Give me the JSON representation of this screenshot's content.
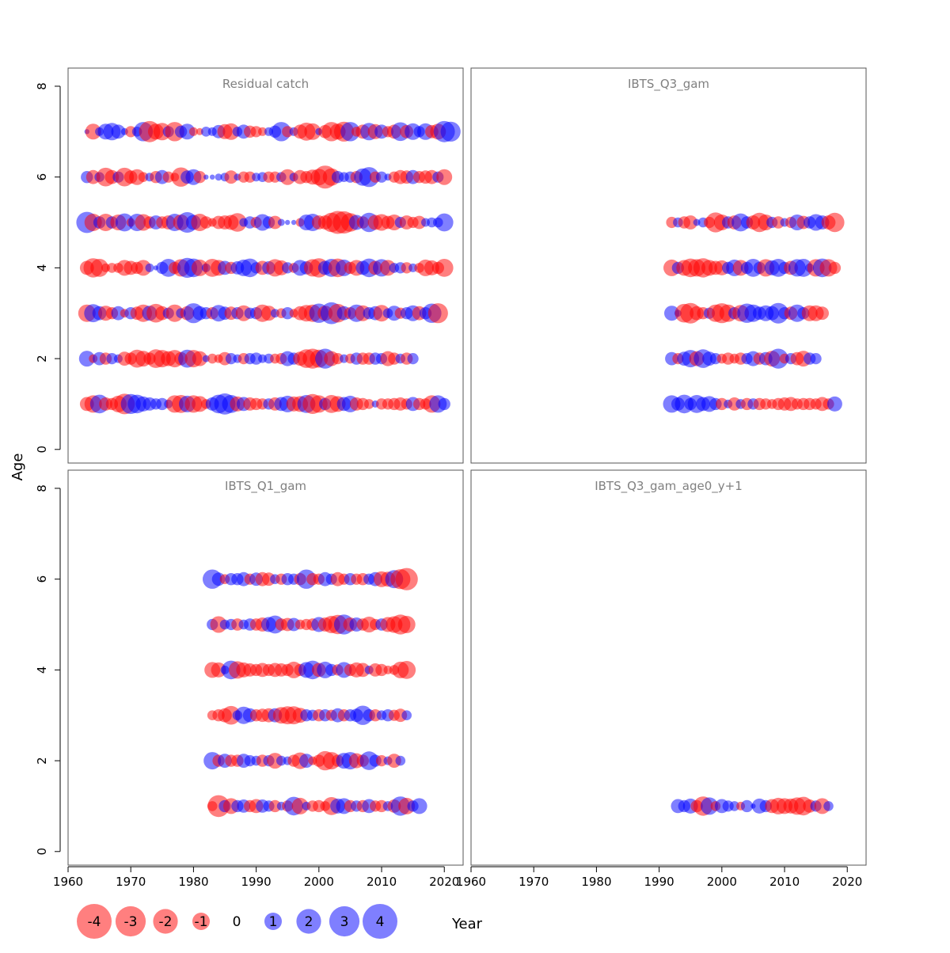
{
  "chart_data": {
    "type": "scatter",
    "subtype": "bubble residual plot",
    "xlabel": "Year",
    "ylabel": "Age",
    "xlim": [
      1960,
      2023
    ],
    "ylim": [
      -0.3,
      8.4
    ],
    "x_ticks": [
      1960,
      1970,
      1980,
      1990,
      2000,
      2010,
      2020
    ],
    "y_ticks": [
      0,
      2,
      4,
      6,
      8
    ],
    "colors": {
      "negative": "#ff0000",
      "positive": "#0000ff"
    },
    "legend": {
      "values": [
        -4,
        -3,
        -2,
        -1,
        0,
        1,
        2,
        3,
        4
      ],
      "labels": [
        "-4",
        "-3",
        "-2",
        "-1",
        "0",
        "1",
        "2",
        "3",
        "4"
      ]
    },
    "panels": [
      {
        "title": "Residual catch",
        "first_year": 1963,
        "ages": [
          7,
          6,
          5,
          4,
          3,
          2,
          1
        ],
        "residuals": {
          "7": [
            0.1,
            -1,
            0.3,
            1,
            1.2,
            0.8,
            0.2,
            -0.5,
            0.4,
            1.5,
            -1.8,
            -1,
            -1.2,
            0.5,
            -1.5,
            0.6,
            1,
            -0.3,
            -0.2,
            0.4,
            0.3,
            0.7,
            -0.9,
            -1.1,
            0.4,
            0.8,
            -0.6,
            -0.5,
            -0.3,
            0.3,
            0.6,
            1.5,
            -0.5,
            0.3,
            -0.8,
            -1.3,
            -1.1,
            0.2,
            -0.7,
            -1.5,
            -1,
            -1.6,
            1.5,
            -0.4,
            -0.8,
            1.2,
            -0.9,
            0.8,
            -0.5,
            -0.8,
            1.4,
            -0.7,
            1.1,
            0.5,
            1.1,
            -0.7,
            -1,
            1.8,
            1.6
          ],
          "6": [
            0.6,
            -0.8,
            0.4,
            -1.4,
            -0.8,
            0.5,
            -1.4,
            -0.7,
            -1,
            -0.4,
            0.3,
            -0.6,
            0.8,
            -0.5,
            -0.3,
            -1.5,
            0.7,
            1,
            -0.6,
            0.1,
            0.1,
            0.2,
            0.3,
            -0.7,
            0.2,
            -0.5,
            -0.5,
            0.3,
            0.4,
            -0.5,
            -0.5,
            0.4,
            -1,
            0.3,
            -0.8,
            -0.6,
            -0.9,
            -1.1,
            -2.1,
            -1.2,
            0.6,
            0.4,
            0.5,
            -0.6,
            1.2,
            1.6,
            -0.5,
            0.5,
            0.2,
            -0.5,
            -0.8,
            -0.7,
            0.8,
            -0.6,
            -0.7,
            -0.8,
            0.5,
            -1
          ],
          "5": [
            1.8,
            -1.2,
            0.6,
            -1.2,
            0.6,
            -1,
            1.3,
            -0.3,
            1.2,
            -1.1,
            -0.6,
            0.8,
            -0.6,
            -0.8,
            1.2,
            -1,
            1.7,
            0.9,
            -1.2,
            -0.6,
            -0.3,
            -0.7,
            -0.8,
            -0.9,
            -1.4,
            0.3,
            0.6,
            -0.5,
            1.1,
            0.6,
            -0.7,
            0.2,
            0.1,
            0.1,
            -0.3,
            1,
            1.2,
            -0.8,
            -0.8,
            -1.5,
            -2.1,
            -2,
            -1.4,
            0.9,
            -0.6,
            1.5,
            -0.9,
            -1.1,
            -0.7,
            -1,
            0.5,
            -0.8,
            -0.5,
            -0.7,
            0.3,
            0.4,
            0.4,
            1.3
          ],
          "4": [
            -0.8,
            -1.5,
            -1.3,
            -0.3,
            -0.4,
            -0.4,
            -1,
            -0.8,
            -0.6,
            -1,
            0.3,
            0.1,
            0.6,
            1.3,
            -0.6,
            -1.2,
            1.6,
            1.4,
            -1.1,
            0.3,
            -1.3,
            -1,
            0.8,
            -0.6,
            0.7,
            1.1,
            1.4,
            0.5,
            -0.8,
            0.7,
            -1.2,
            -0.9,
            0.5,
            -0.4,
            1,
            0.7,
            -1.2,
            -1.5,
            0.8,
            1.3,
            -1.4,
            1.1,
            -0.6,
            -1,
            0.8,
            1.4,
            -0.8,
            1.2,
            -1,
            0.4,
            0.5,
            -0.5,
            0.3,
            -0.4,
            -1.1,
            -0.9,
            -0.6,
            -1.3
          ],
          "3": [
            -1.2,
            1.3,
            0.8,
            -0.9,
            -0.6,
            0.8,
            -0.3,
            0.6,
            -0.7,
            -1.2,
            0.9,
            -1.4,
            -0.8,
            0.5,
            -1.2,
            0.4,
            -0.8,
            1.6,
            0.8,
            0.6,
            -0.6,
            1.1,
            0.7,
            -0.7,
            0.6,
            -1,
            0.5,
            0.6,
            -1.2,
            -0.9,
            0.3,
            -0.4,
            0.6,
            -0.3,
            -0.8,
            -1.1,
            -1.2,
            1.5,
            -0.9,
            1.9,
            -1.4,
            0.8,
            -0.6,
            1.2,
            -1,
            0.6,
            0.8,
            -1.1,
            0.4,
            0.9,
            -0.5,
            0.6,
            1,
            -0.8,
            0.6,
            1.5,
            -1.6
          ],
          "2": [
            1,
            -0.3,
            0.7,
            -0.6,
            0.5,
            0.3,
            -0.8,
            -0.6,
            -1.3,
            -1,
            -0.6,
            -1.4,
            -1.2,
            -0.9,
            -1.2,
            -0.7,
            1.3,
            -1.2,
            -0.9,
            0.2,
            -0.4,
            -0.3,
            -0.7,
            0.5,
            0.3,
            -0.5,
            0.5,
            0.6,
            0.3,
            0.4,
            -0.4,
            -0.5,
            0.9,
            0.6,
            -0.8,
            -1.4,
            -1.6,
            -1.3,
            1.6,
            -0.9,
            -0.5,
            0.3,
            -0.4,
            0.6,
            -0.6,
            -0.6,
            0.6,
            0.5,
            -0.9,
            -0.6,
            0.4,
            -0.6,
            0.5
          ],
          "1": [
            -0.8,
            -1.2,
            1.4,
            -0.7,
            -0.6,
            -1.1,
            -1.7,
            1.6,
            1.4,
            0.9,
            0.7,
            0.5,
            0.6,
            0.3,
            -1.2,
            -1.3,
            1.1,
            -1.2,
            -1,
            -0.4,
            0.7,
            1.4,
            1.8,
            1.3,
            -0.9,
            0.8,
            -0.7,
            -0.6,
            -0.5,
            0.5,
            -0.7,
            0.8,
            1.1,
            -0.9,
            -1,
            1.3,
            -1.6,
            -1.2,
            0.6,
            -1.3,
            -1,
            0.8,
            1.1,
            -0.7,
            -0.6,
            -0.4,
            0.2,
            -0.5,
            -0.5,
            -0.6,
            -0.7,
            -0.5,
            0.8,
            -0.6,
            -0.5,
            -1.2,
            1.2,
            0.6
          ]
        }
      },
      {
        "title": "IBTS_Q3_gam",
        "first_year": 1992,
        "ages": [
          5,
          4,
          3,
          2,
          1
        ],
        "residuals": {
          "5": [
            -0.5,
            0.4,
            -0.6,
            -0.8,
            0.2,
            0.4,
            -0.5,
            -1.6,
            -1,
            0.6,
            -0.8,
            1.3,
            0.6,
            -0.8,
            -1.5,
            -1,
            0.5,
            -0.6,
            0.3,
            -0.5,
            1,
            -0.7,
            0.6,
            1.1,
            0.8,
            -0.8,
            -1.5
          ],
          "4": [
            -1.1,
            0.6,
            -1,
            -1.4,
            -1.2,
            -1.5,
            -1,
            -0.8,
            -0.9,
            0.6,
            1.1,
            -1,
            0.6,
            1.3,
            0.6,
            -1.2,
            0.9,
            1.3,
            0.6,
            -0.8,
            1.2,
            1.3,
            0.3,
            -1.2,
            1.4,
            -1.2,
            -0.6
          ],
          "3": [
            0.9,
            0.2,
            -1.4,
            -1.7,
            -0.8,
            -0.6,
            0.5,
            -1.2,
            -1.6,
            -1.2,
            0.6,
            -1.1,
            1.5,
            1.2,
            0.7,
            1,
            0.8,
            1.7,
            0.6,
            -0.7,
            1.2,
            0.6,
            -1,
            -1,
            -0.7
          ],
          "2": [
            0.7,
            -0.5,
            0.8,
            1.2,
            -0.9,
            1.4,
            0.8,
            0.5,
            -0.4,
            -0.6,
            -0.4,
            -0.6,
            0.5,
            0.9,
            -0.6,
            0.7,
            -1,
            1.6,
            -0.4,
            0.5,
            -0.7,
            -1,
            0.6,
            0.5
          ],
          "1": [
            1.2,
            0.7,
            1.4,
            0.6,
            1.3,
            0.8,
            1,
            0.6,
            -0.6,
            0.3,
            -0.7,
            0.4,
            -0.6,
            0.5,
            -0.6,
            -0.5,
            -0.4,
            -0.6,
            -0.7,
            -0.8,
            -0.5,
            -0.6,
            -0.6,
            -0.5,
            -0.8,
            -0.5,
            0.9
          ]
        }
      },
      {
        "title": "IBTS_Q1_gam",
        "first_year": 1983,
        "ages": [
          6,
          5,
          4,
          3,
          2,
          1
        ],
        "residuals": {
          "6": [
            1.5,
            0.7,
            -0.4,
            0.6,
            0.6,
            0.8,
            -0.5,
            0.7,
            -0.8,
            -0.7,
            0.4,
            -0.5,
            0.6,
            0.5,
            -0.6,
            1.5,
            -0.6,
            -0.5,
            0.8,
            0.5,
            -0.8,
            -0.5,
            0.6,
            -0.5,
            -0.6,
            0.5,
            0.8,
            -1,
            -0.9,
            1.3,
            -1.6,
            -2
          ],
          "5": [
            0.5,
            -1.1,
            0.4,
            0.5,
            -0.6,
            0.4,
            0.6,
            -0.6,
            -0.8,
            0.9,
            1.3,
            -0.6,
            -0.7,
            0.7,
            -0.4,
            -0.5,
            -0.6,
            0.9,
            -0.8,
            -1.2,
            -1.5,
            1.6,
            -0.8,
            0.8,
            -0.6,
            -1,
            -0.5,
            0.6,
            -0.9,
            -1.1,
            -1.6,
            -1.2
          ],
          "4": [
            -1,
            -0.9,
            0.3,
            1.4,
            -1.2,
            -0.9,
            -0.7,
            -0.6,
            -0.8,
            -0.6,
            -0.8,
            -0.7,
            -0.6,
            -1.1,
            -0.6,
            1,
            1.4,
            -0.8,
            1.1,
            0.6,
            -0.5,
            1,
            -0.6,
            -0.9,
            -0.8,
            0.3,
            -0.7,
            -0.6,
            -0.3,
            -0.4,
            -1.1,
            -1.3
          ],
          "3": [
            -0.4,
            -0.6,
            -0.8,
            -1.4,
            0.4,
            1.2,
            0.8,
            -0.6,
            -0.7,
            -0.8,
            0.8,
            -1.1,
            -1.3,
            -1.3,
            -0.9,
            0.6,
            0.5,
            -0.6,
            0.6,
            -0.5,
            0.8,
            -0.6,
            0.6,
            0.7,
            1.5,
            0.6,
            -0.6,
            0.4,
            0.6,
            -0.5,
            -0.7,
            0.4
          ],
          "2": [
            1.2,
            -0.6,
            0.8,
            -0.6,
            -0.6,
            0.8,
            0.5,
            0.4,
            -0.6,
            0.5,
            -1,
            0.4,
            0.3,
            -0.6,
            -1.1,
            0.8,
            -0.3,
            -0.6,
            -1.5,
            -1.2,
            -0.6,
            1,
            1.2,
            -0.9,
            -0.6,
            1.4,
            0.6,
            -0.5,
            0.3,
            -0.8,
            0.4
          ],
          "1": [
            -0.4,
            -1.9,
            0.6,
            -1,
            0.6,
            0.7,
            -0.6,
            -0.8,
            0.7,
            0.5,
            -0.6,
            0.3,
            -0.5,
            1.4,
            -1.1,
            0.3,
            -0.5,
            -0.6,
            -0.4,
            -1.3,
            0.9,
            1,
            -0.6,
            0.5,
            -0.6,
            0.8,
            -0.5,
            -0.6,
            0.4,
            -0.7,
            1.5,
            -1.1,
            0.5,
            1
          ]
        }
      },
      {
        "title": "IBTS_Q3_gam_age0_y+1",
        "first_year": 1993,
        "ages": [
          1
        ],
        "residuals": {
          "1": [
            0.8,
            0.6,
            0.9,
            -0.6,
            -1.5,
            1.2,
            -0.4,
            0.8,
            0.5,
            0.4,
            -0.3,
            0.6,
            0.1,
            0.9,
            0.6,
            -0.8,
            -1.1,
            -1,
            -0.9,
            -1.2,
            -1.4,
            -0.7,
            0.5,
            -1,
            0.4
          ]
        }
      }
    ]
  }
}
